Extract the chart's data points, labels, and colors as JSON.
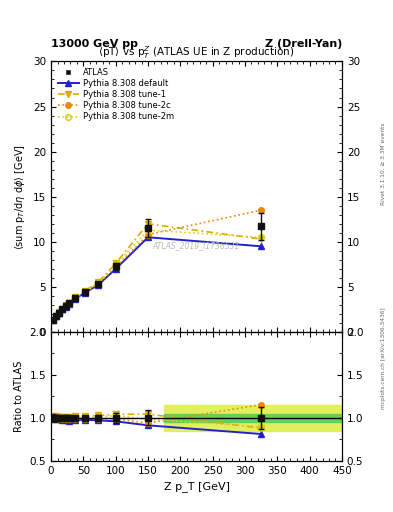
{
  "title_top_left": "13000 GeV pp",
  "title_top_right": "Z (Drell-Yan)",
  "plot_title": "<pT> vs p$_T^Z$ (ATLAS UE in Z production)",
  "ylabel_main": "<sum p_T/dη dφ> [GeV]",
  "ylabel_ratio": "Ratio to ATLAS",
  "xlabel": "Z p_T [GeV]",
  "watermark": "ATLAS_2019_I1736531",
  "rivet_label": "Rivet 3.1.10, ≥ 3.3M events",
  "arxiv_label": "mcplots.cern.ch [arXiv:1306.3436]",
  "atlas_x": [
    2.5,
    7.5,
    12.5,
    17.5,
    22.5,
    27.5,
    37.5,
    52.5,
    72.5,
    100.0,
    150.0,
    325.0
  ],
  "atlas_y": [
    1.35,
    1.75,
    2.15,
    2.55,
    2.9,
    3.2,
    3.8,
    4.45,
    5.35,
    7.3,
    11.5,
    11.7
  ],
  "atlas_yerr": [
    0.06,
    0.06,
    0.07,
    0.07,
    0.08,
    0.08,
    0.1,
    0.12,
    0.18,
    0.4,
    1.0,
    1.5
  ],
  "pythia_default_x": [
    2.5,
    7.5,
    12.5,
    17.5,
    22.5,
    27.5,
    37.5,
    52.5,
    72.5,
    100.0,
    150.0,
    325.0
  ],
  "pythia_default_y": [
    1.35,
    1.73,
    2.12,
    2.5,
    2.82,
    3.1,
    3.7,
    4.35,
    5.2,
    7.0,
    10.5,
    9.5
  ],
  "pythia_tune1_x": [
    2.5,
    7.5,
    12.5,
    17.5,
    22.5,
    27.5,
    37.5,
    52.5,
    72.5,
    100.0,
    150.0,
    325.0
  ],
  "pythia_tune1_y": [
    1.38,
    1.78,
    2.18,
    2.58,
    2.94,
    3.24,
    3.88,
    4.55,
    5.5,
    7.6,
    12.0,
    10.3
  ],
  "pythia_tune2c_x": [
    2.5,
    7.5,
    12.5,
    17.5,
    22.5,
    27.5,
    37.5,
    52.5,
    72.5,
    100.0,
    150.0,
    325.0
  ],
  "pythia_tune2c_y": [
    1.35,
    1.74,
    2.13,
    2.52,
    2.85,
    3.14,
    3.75,
    4.4,
    5.3,
    7.2,
    10.8,
    13.5
  ],
  "pythia_tune2m_x": [
    2.5,
    7.5,
    12.5,
    17.5,
    22.5,
    27.5,
    37.5,
    52.5,
    72.5,
    100.0,
    150.0,
    325.0
  ],
  "pythia_tune2m_y": [
    1.36,
    1.76,
    2.16,
    2.56,
    2.9,
    3.2,
    3.82,
    4.48,
    5.4,
    7.5,
    11.3,
    10.5
  ],
  "ylim_main": [
    0,
    30
  ],
  "ylim_ratio": [
    0.5,
    2.0
  ],
  "xlim": [
    0,
    450
  ],
  "ratio_band_green_half": 0.05,
  "ratio_band_yellow_half": 0.15,
  "ratio_band_xstart": 175.0,
  "colors": {
    "atlas": "#111111",
    "pythia_default": "#2222cc",
    "pythia_tune1": "#ddaa00",
    "pythia_tune2c": "#ee8800",
    "pythia_tune2m": "#ddcc22"
  },
  "bg_color": "#ffffff"
}
